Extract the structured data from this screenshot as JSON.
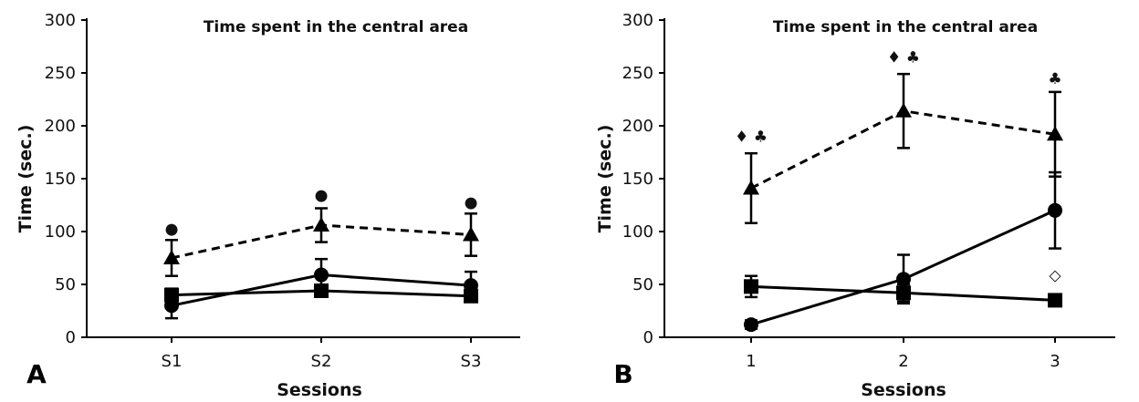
{
  "chart_data": [
    {
      "panel_label": "A",
      "type": "line",
      "title": "Time spent in the central area",
      "xlabel": "Sessions",
      "ylabel": "Time (sec.)",
      "categories": [
        "S1",
        "S2",
        "S3"
      ],
      "ylim": [
        0,
        300
      ],
      "yticks": [
        0,
        50,
        100,
        150,
        200,
        250,
        300
      ],
      "grid": false,
      "series": [
        {
          "marker": "triangle",
          "line": "dashed",
          "values": [
            75,
            106,
            97
          ],
          "errors": [
            17,
            16,
            20
          ]
        },
        {
          "marker": "circle",
          "line": "solid",
          "values": [
            30,
            59,
            49
          ],
          "errors": [
            12,
            15,
            13
          ]
        },
        {
          "marker": "square",
          "line": "solid",
          "values": [
            40,
            44,
            39
          ],
          "errors": [
            6,
            5,
            5
          ]
        }
      ],
      "annotations": [
        {
          "category": "S1",
          "y": 103,
          "symbol": "●"
        },
        {
          "category": "S2",
          "y": 135,
          "symbol": "●"
        },
        {
          "category": "S3",
          "y": 128,
          "symbol": "●"
        }
      ]
    },
    {
      "panel_label": "B",
      "type": "line",
      "title": "Time spent in the central area",
      "xlabel": "Sessions",
      "ylabel": "Time (sec.)",
      "categories": [
        "1",
        "2",
        "3"
      ],
      "ylim": [
        0,
        300
      ],
      "yticks": [
        0,
        50,
        100,
        150,
        200,
        250,
        300
      ],
      "grid": false,
      "series": [
        {
          "marker": "triangle",
          "line": "dashed",
          "values": [
            141,
            214,
            192
          ],
          "errors": [
            33,
            35,
            40
          ]
        },
        {
          "marker": "circle",
          "line": "solid",
          "values": [
            12,
            55,
            120
          ],
          "errors": [
            4,
            23,
            36
          ]
        },
        {
          "marker": "square",
          "line": "solid",
          "values": [
            48,
            42,
            35
          ],
          "errors": [
            10,
            8,
            3
          ]
        }
      ],
      "annotations": [
        {
          "category": "1",
          "y": 190,
          "symbol": "♦ ♣"
        },
        {
          "category": "2",
          "y": 265,
          "symbol": "♦ ♣"
        },
        {
          "category": "3",
          "y": 245,
          "symbol": "♣"
        },
        {
          "category": "3",
          "y": 59,
          "symbol": "◇"
        }
      ]
    }
  ]
}
